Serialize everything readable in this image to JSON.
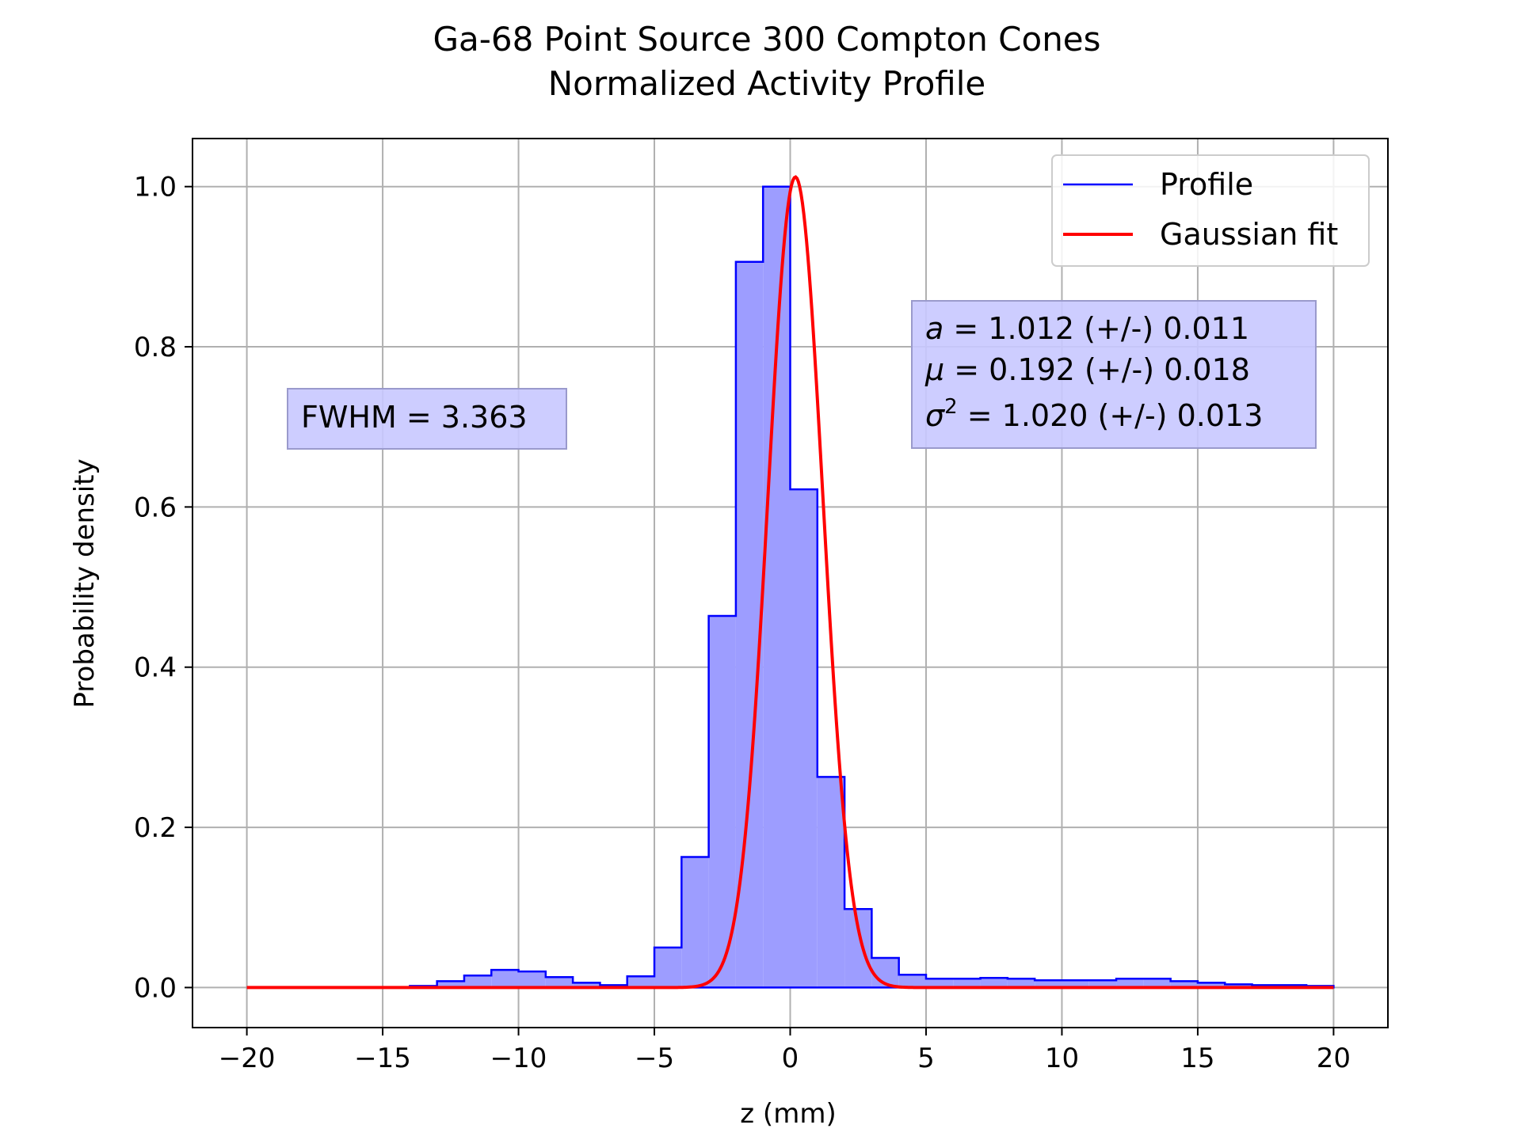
{
  "chart_data": {
    "type": "bar",
    "title": "Ga-68 Point Source 300 Compton Cones",
    "subtitle": "Normalized Activity Profile",
    "xlabel": "z (mm)",
    "ylabel": "Probability density",
    "xlim": [
      -22,
      22
    ],
    "ylim": [
      -0.05,
      1.06
    ],
    "x_ticks": [
      -20,
      -15,
      -10,
      -5,
      0,
      5,
      10,
      15,
      20
    ],
    "x_tick_labels": [
      "−20",
      "−15",
      "−10",
      "−5",
      "0",
      "5",
      "10",
      "15",
      "20"
    ],
    "y_ticks": [
      0.0,
      0.2,
      0.4,
      0.6,
      0.8,
      1.0
    ],
    "y_tick_labels": [
      "0.0",
      "0.2",
      "0.4",
      "0.6",
      "0.8",
      "1.0"
    ],
    "grid": true,
    "legend_position": "top-right",
    "series": [
      {
        "name": "Profile",
        "kind": "step-histogram",
        "color": "#0000ff",
        "fill": "#9d9dff",
        "bin_edges": [
          -20,
          -19,
          -18,
          -17,
          -16,
          -15,
          -14,
          -13,
          -12,
          -11,
          -10,
          -9,
          -8,
          -7,
          -6,
          -5,
          -4,
          -3,
          -2,
          -1,
          0,
          1,
          2,
          3,
          4,
          5,
          6,
          7,
          8,
          9,
          10,
          11,
          12,
          13,
          14,
          15,
          16,
          17,
          18,
          19,
          20
        ],
        "values": [
          0,
          0,
          0,
          0,
          0,
          0,
          0.002,
          0.008,
          0.015,
          0.022,
          0.02,
          0.013,
          0.006,
          0.003,
          0.014,
          0.05,
          0.163,
          0.464,
          0.906,
          1.0,
          0.622,
          0.263,
          0.098,
          0.037,
          0.016,
          0.011,
          0.011,
          0.012,
          0.011,
          0.009,
          0.009,
          0.009,
          0.011,
          0.011,
          0.008,
          0.006,
          0.004,
          0.003,
          0.003,
          0.002
        ]
      },
      {
        "name": "Gaussian fit",
        "kind": "line",
        "color": "#ff0000",
        "a": 1.012,
        "mu": 0.192,
        "sigma2": 1.02,
        "x_range": [
          -20,
          20
        ]
      }
    ],
    "annotations": {
      "fwhm": "FWHM = 3.363",
      "fit_a_sym": "a",
      "fit_a": " = 1.012 (+/-) 0.011",
      "fit_mu_sym": "μ",
      "fit_mu": " = 0.192 (+/-) 0.018",
      "fit_sigma_sym": "σ",
      "fit_sigma_exp": "2",
      "fit_sigma": " = 1.020 (+/-) 0.013"
    }
  }
}
